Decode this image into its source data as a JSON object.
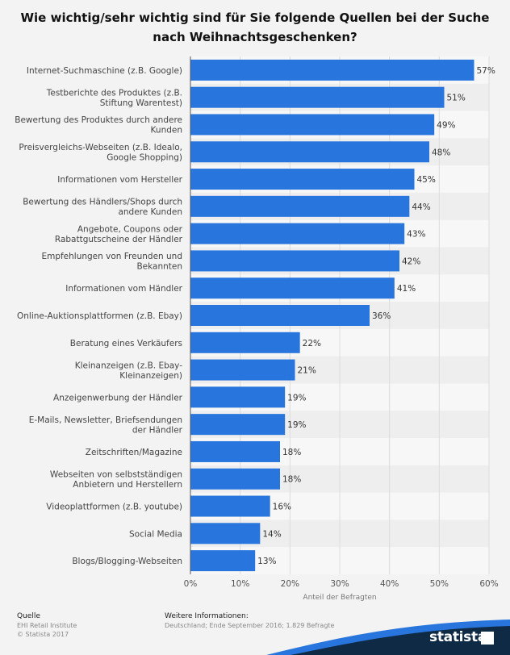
{
  "title_lines": [
    "Wie wichtig/sehr wichtig sind für Sie folgende Quellen bei der Suche",
    "nach Weihnachtsgeschenken?"
  ],
  "chart_data": {
    "type": "bar",
    "orientation": "horizontal",
    "categories": [
      [
        "Internet-Suchmaschine (z.B. Google)"
      ],
      [
        "Testberichte des Produktes (z.B.",
        "Stiftung Warentest)"
      ],
      [
        "Bewertung des Produktes durch andere",
        "Kunden"
      ],
      [
        "Preisvergleichs-Webseiten (z.B. Idealo,",
        "Google Shopping)"
      ],
      [
        "Informationen vom Hersteller"
      ],
      [
        "Bewertung des Händlers/Shops durch",
        "andere Kunden"
      ],
      [
        "Angebote, Coupons oder",
        "Rabattgutscheine der Händler"
      ],
      [
        "Empfehlungen von Freunden und",
        "Bekannten"
      ],
      [
        "Informationen vom Händler"
      ],
      [
        "Online-Auktionsplattformen (z.B. Ebay)"
      ],
      [
        "Beratung eines Verkäufers"
      ],
      [
        "Kleinanzeigen (z.B. Ebay-",
        "Kleinanzeigen)"
      ],
      [
        "Anzeigenwerbung der Händler"
      ],
      [
        "E-Mails, Newsletter, Briefsendungen",
        "der Händler"
      ],
      [
        "Zeitschriften/Magazine"
      ],
      [
        "Webseiten von selbstständigen",
        "Anbietern und Herstellern"
      ],
      [
        "Videoplattformen (z.B. youtube)"
      ],
      [
        "Social Media"
      ],
      [
        "Blogs/Blogging-Webseiten"
      ]
    ],
    "values": [
      57,
      51,
      49,
      48,
      45,
      44,
      43,
      42,
      41,
      36,
      22,
      21,
      19,
      19,
      18,
      18,
      16,
      14,
      13
    ],
    "value_labels": [
      "57%",
      "51%",
      "49%",
      "48%",
      "45%",
      "44%",
      "43%",
      "42%",
      "41%",
      "36%",
      "22%",
      "21%",
      "19%",
      "19%",
      "18%",
      "18%",
      "16%",
      "14%",
      "13%"
    ],
    "xlim": [
      0,
      60
    ],
    "x_ticks": [
      0,
      10,
      20,
      30,
      40,
      50,
      60
    ],
    "x_tick_labels": [
      "0%",
      "10%",
      "20%",
      "30%",
      "40%",
      "50%",
      "60%"
    ],
    "xlabel": "Anteil der Befragten",
    "grid": true,
    "bar_color": "#2876dd"
  },
  "footer": {
    "source_heading": "Quelle",
    "source_name": "EHI Retail Institute",
    "copyright": "© Statista 2017",
    "info_heading": "Weitere Informationen:",
    "info_text": "Deutschland; Ende September 2016; 1.829 Befragte"
  },
  "brand": {
    "logo_text": "statista",
    "dark_color": "#0f2a44",
    "accent_color": "#2876dd"
  }
}
